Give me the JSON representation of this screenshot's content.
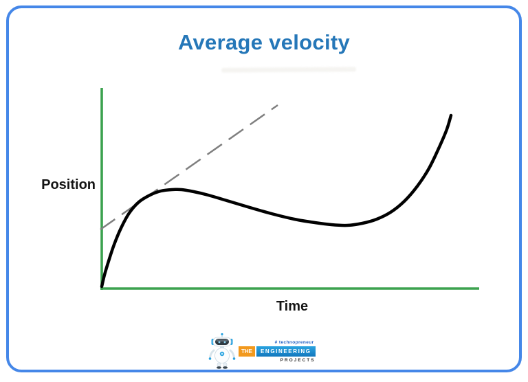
{
  "card": {
    "title": "Average velocity",
    "border_color": "#4587e8",
    "title_color": "#2577b8"
  },
  "axes": {
    "y_label": "Position",
    "x_label": "Time",
    "color": "#3ca24f"
  },
  "chart_data": {
    "type": "line",
    "title": "Average velocity",
    "xlabel": "Time",
    "ylabel": "Position",
    "x_ticks": [],
    "y_ticks": [],
    "grid": false,
    "legend": null,
    "xlim": [
      0,
      10
    ],
    "ylim": [
      0,
      10.2
    ],
    "series": [
      {
        "name": "position vs time curve",
        "style": {
          "color": "#000000",
          "dash": "solid",
          "width": 4.5
        },
        "x": [
          0,
          0.33,
          0.73,
          1.27,
          1.85,
          2.11,
          2.82,
          3.85,
          5.09,
          6.07,
          6.89,
          7.64,
          8.35,
          8.93,
          9.24
        ],
        "y": [
          0,
          2.15,
          3.75,
          4.65,
          4.93,
          4.93,
          4.65,
          4.06,
          3.44,
          3.16,
          3.23,
          3.78,
          5.1,
          7.08,
          8.68
        ]
      },
      {
        "name": "average velocity dashed reference line (tangent/secant)",
        "style": {
          "color": "#7f7f7f",
          "dash": "dashed",
          "width": 2.5
        },
        "x": [
          0,
          4.65
        ],
        "y": [
          2.9,
          9.2
        ]
      }
    ],
    "annotations": []
  },
  "chart_render": {
    "axis_color": "#3ca24f",
    "axis_width": 3.6,
    "y_axis": [
      148,
      128,
      148,
      422
    ],
    "x_axis": [
      146,
      420,
      697,
      420
    ],
    "curve_color": "#010101",
    "curve_width": 4.5,
    "curve_points": [
      [
        148,
        417
      ],
      [
        152,
        400
      ],
      [
        158,
        380
      ],
      [
        166,
        356
      ],
      [
        176,
        332
      ],
      [
        188,
        310
      ],
      [
        202,
        294
      ],
      [
        218,
        284
      ],
      [
        234,
        278
      ],
      [
        250,
        276
      ],
      [
        264,
        276
      ],
      [
        282,
        279
      ],
      [
        303,
        284
      ],
      [
        330,
        292
      ],
      [
        360,
        301
      ],
      [
        395,
        311
      ],
      [
        428,
        319
      ],
      [
        458,
        324
      ],
      [
        482,
        327
      ],
      [
        505,
        328
      ],
      [
        527,
        325
      ],
      [
        548,
        319
      ],
      [
        568,
        309
      ],
      [
        588,
        293
      ],
      [
        607,
        271
      ],
      [
        624,
        245
      ],
      [
        639,
        214
      ],
      [
        650,
        188
      ],
      [
        656,
        168
      ]
    ],
    "tangent_color": "#7f7f7f",
    "tangent_width": 2.5,
    "tangent_dash": "26 12",
    "tangent": [
      146,
      334,
      404,
      153
    ]
  },
  "logo": {
    "tagline": "# technopreneur",
    "the": "THE",
    "engineering": "ENGINEERING",
    "projects": "PROJECTS",
    "orange": "#f2991d",
    "blue": "#1e93d6"
  }
}
